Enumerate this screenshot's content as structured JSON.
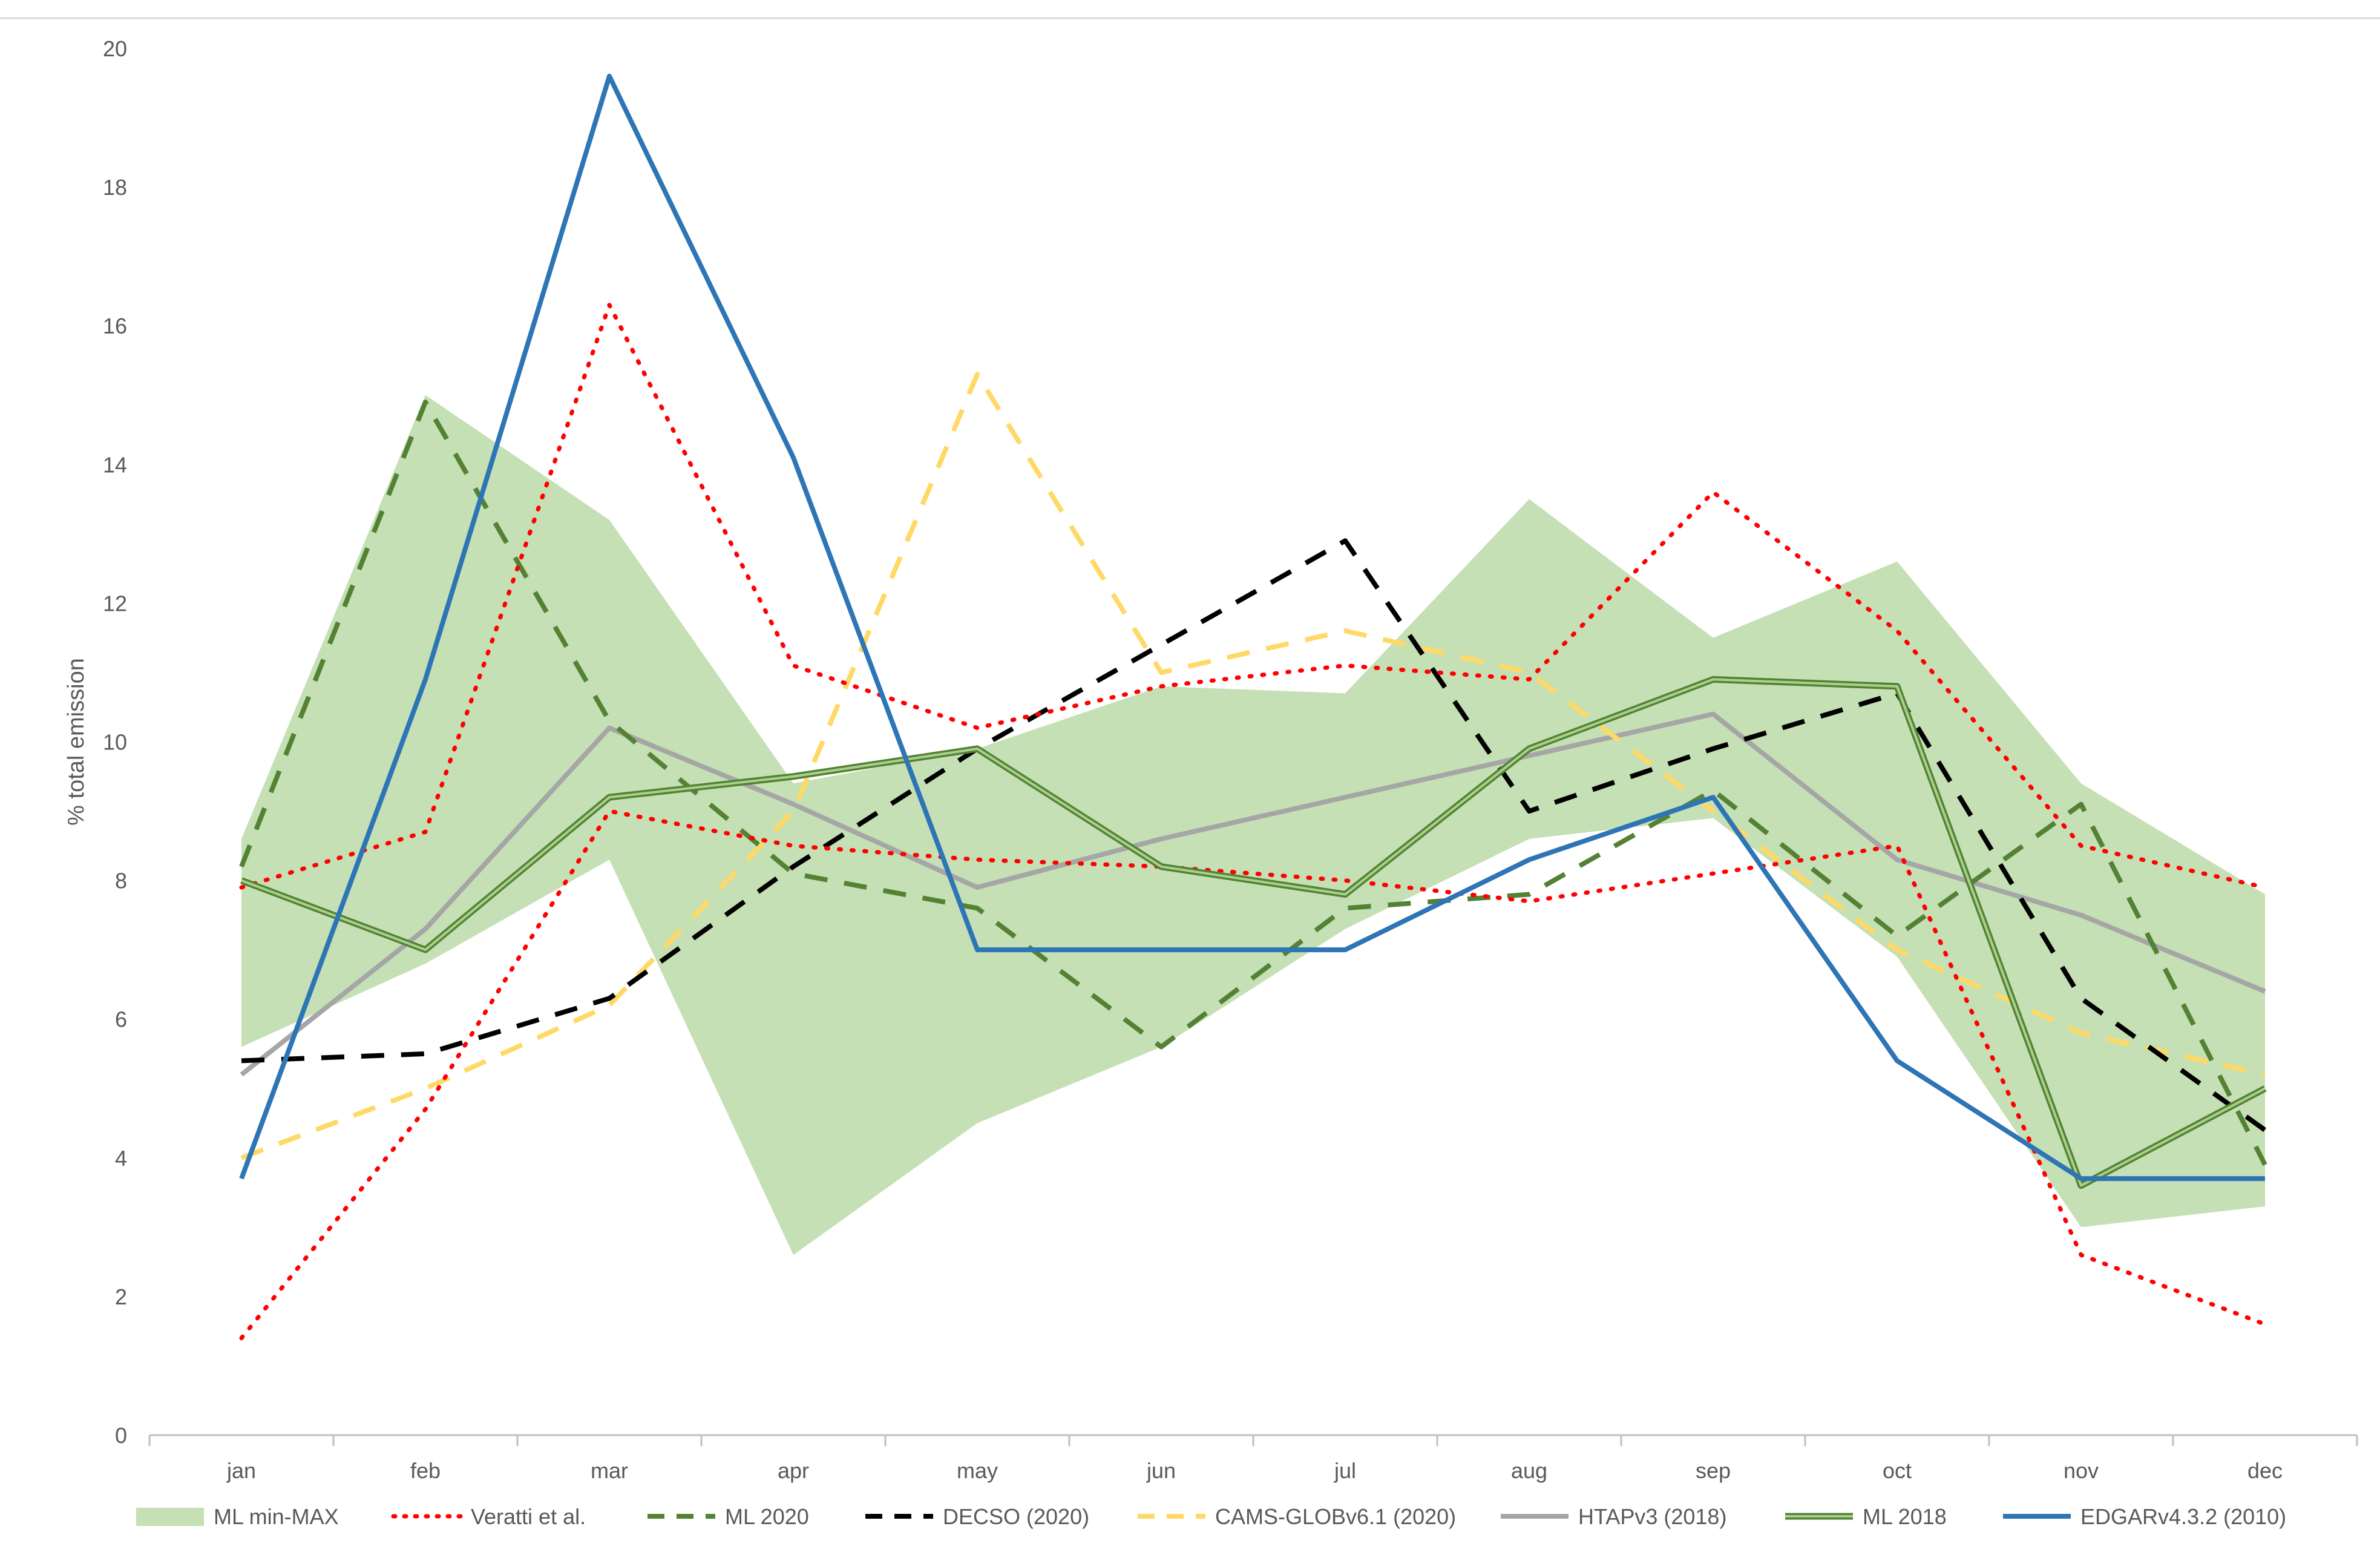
{
  "chart_data": {
    "type": "line",
    "title": "",
    "xlabel": "",
    "ylabel": "% total emission",
    "ylim": [
      0,
      20
    ],
    "yticks": [
      "0",
      "2",
      "4",
      "6",
      "8",
      "10",
      "12",
      "14",
      "16",
      "18",
      "20"
    ],
    "categories": [
      "jan",
      "feb",
      "mar",
      "apr",
      "may",
      "jun",
      "jul",
      "aug",
      "sep",
      "oct",
      "nov",
      "dec"
    ],
    "band": {
      "name": "ML min-MAX",
      "color": "#c5e0b4",
      "min": [
        5.6,
        6.8,
        8.3,
        2.6,
        4.5,
        5.6,
        7.3,
        8.6,
        8.9,
        6.9,
        3.0,
        3.3
      ],
      "max": [
        8.6,
        15.0,
        13.2,
        9.4,
        9.9,
        10.8,
        10.7,
        13.5,
        11.5,
        12.6,
        9.4,
        7.8
      ]
    },
    "series": [
      {
        "name": "Veratti et al.",
        "style": "dotted",
        "color": "#ff0000",
        "values": [
          7.9,
          8.7,
          16.3,
          11.1,
          10.2,
          10.8,
          11.1,
          10.9,
          13.6,
          11.6,
          8.5,
          7.9
        ]
      },
      {
        "name": "Veratti et al.",
        "style": "dotted",
        "color": "#ff0000",
        "legend": false,
        "values": [
          1.4,
          4.7,
          9.0,
          8.5,
          8.3,
          8.2,
          8.0,
          7.7,
          8.1,
          8.5,
          2.6,
          1.6
        ]
      },
      {
        "name": "ML 2020",
        "style": "dashed",
        "color": "#548235",
        "values": [
          8.2,
          14.9,
          10.3,
          8.1,
          7.6,
          5.6,
          7.6,
          7.8,
          9.3,
          7.2,
          9.1,
          3.9
        ]
      },
      {
        "name": "DECSO (2020)",
        "style": "dashed",
        "color": "#000000",
        "values": [
          5.4,
          5.5,
          6.3,
          8.2,
          9.9,
          11.4,
          12.9,
          9.0,
          9.9,
          10.7,
          6.3,
          4.4
        ]
      },
      {
        "name": "CAMS-GLOBv6.1 (2020)",
        "style": "dashed",
        "color": "#ffd966",
        "values": [
          4.0,
          5.0,
          6.2,
          9.0,
          15.3,
          11.0,
          11.6,
          11.0,
          9.0,
          7.0,
          5.8,
          5.2
        ]
      },
      {
        "name": "HTAPv3 (2018)",
        "style": "solid",
        "color": "#a6a6a6",
        "values": [
          5.2,
          7.3,
          10.2,
          9.1,
          7.9,
          8.6,
          9.2,
          9.8,
          10.4,
          8.3,
          7.5,
          6.4
        ]
      },
      {
        "name": "ML 2018",
        "style": "double",
        "color": "#70ad47",
        "values": [
          8.0,
          7.0,
          9.2,
          9.5,
          9.9,
          8.2,
          7.8,
          9.9,
          10.9,
          10.8,
          3.6,
          5.0
        ]
      },
      {
        "name": "EDGARv4.3.2 (2010)",
        "style": "solid",
        "color": "#2e75b6",
        "values": [
          3.7,
          10.9,
          19.6,
          14.1,
          7.0,
          7.0,
          7.0,
          8.3,
          9.2,
          5.4,
          3.7,
          3.7
        ]
      }
    ],
    "legend_position": "bottom"
  }
}
